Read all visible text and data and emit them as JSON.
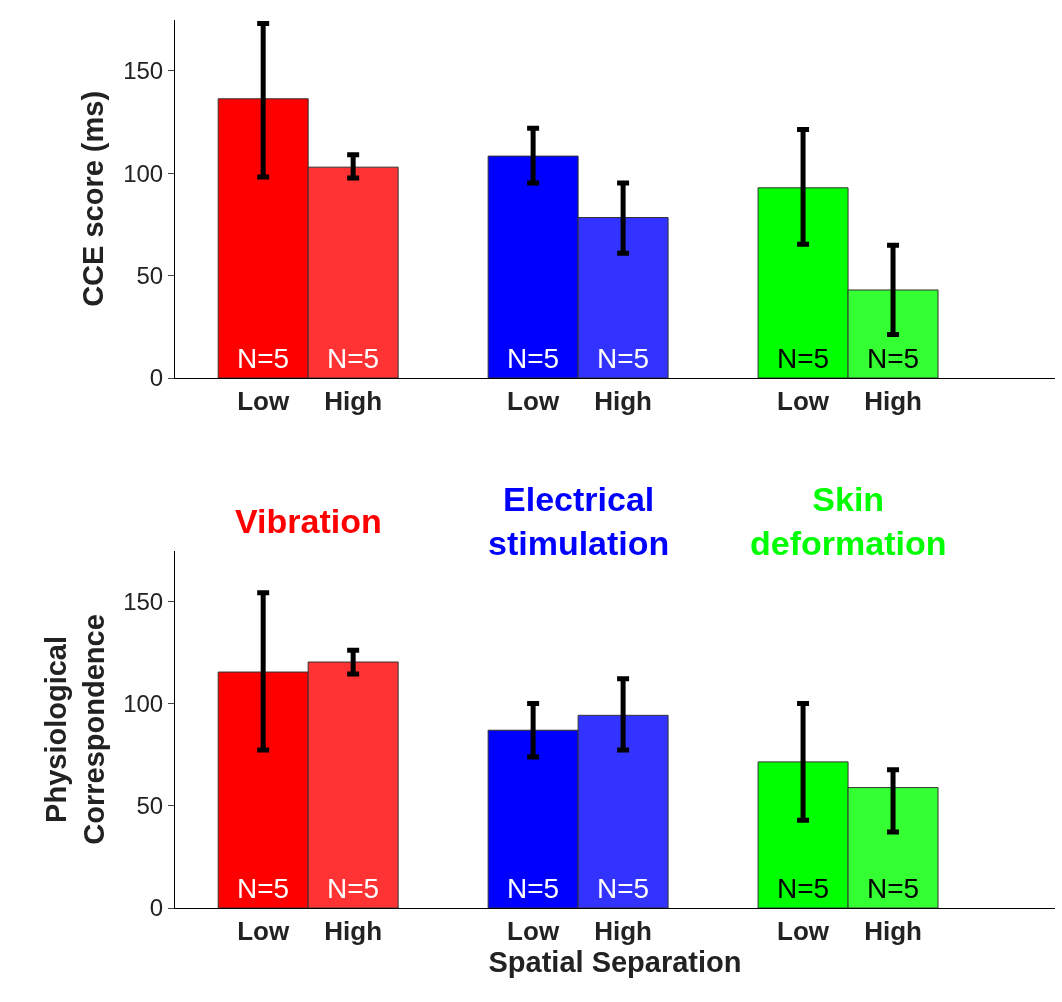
{
  "chart_data": [
    {
      "type": "bar",
      "ylabel": "CCE score (ms)",
      "categories": [
        "Low",
        "High",
        null,
        "Low",
        "High",
        null,
        "Low",
        "High"
      ],
      "ylim": [
        0,
        175
      ],
      "yticks": [
        0,
        50,
        100,
        150
      ],
      "legend": false,
      "annotations": [
        "N=5",
        "N=5",
        "N=5",
        "N=5",
        "N=5",
        "N=5"
      ],
      "series": [
        {
          "colors": [
            "#ff0000",
            "#ff3333",
            null,
            null,
            null,
            null,
            null,
            null
          ],
          "values": [
            136.4,
            103,
            null,
            null,
            null,
            null,
            null,
            null
          ],
          "errors": [
            [
              98.2,
              173.2
            ],
            [
              97.7,
              109
            ],
            null,
            null,
            null,
            null,
            null,
            null
          ]
        },
        {
          "colors": [
            null,
            null,
            null,
            "#0000ff",
            "#3333ff",
            null,
            null,
            null
          ],
          "values": [
            null,
            null,
            null,
            108.4,
            78.4,
            null,
            null,
            null
          ],
          "errors": [
            null,
            null,
            null,
            [
              95.3,
              122
            ],
            [
              61,
              95.3
            ],
            null,
            null,
            null
          ]
        },
        {
          "colors": [
            null,
            null,
            null,
            null,
            null,
            null,
            "#00ff00",
            "#33ff33"
          ],
          "values": [
            null,
            null,
            null,
            null,
            null,
            null,
            92.9,
            43
          ],
          "errors": [
            null,
            null,
            null,
            null,
            null,
            null,
            [
              65.3,
              121.4
            ],
            [
              21.3,
              64.8
            ]
          ]
        }
      ]
    },
    {
      "type": "bar",
      "ylabel": "Physiological\nCorrespondence",
      "xlabel": "Spatial Separation",
      "categories": [
        "Low",
        "High",
        null,
        "Low",
        "High",
        null,
        "Low",
        "High"
      ],
      "ylim": [
        0,
        175
      ],
      "yticks": [
        0,
        50,
        100,
        150
      ],
      "legend": "top",
      "annotations": [
        "N=5",
        "N=5",
        "N=5",
        "N=5",
        "N=5",
        "N=5"
      ],
      "series": [
        {
          "name": "Vibration",
          "color": "#ff0000",
          "colors": [
            "#ff0000",
            "#ff3333",
            null,
            null,
            null,
            null,
            null,
            null
          ],
          "values": [
            115.6,
            120.5,
            null,
            null,
            null,
            null,
            null,
            null
          ],
          "errors": [
            [
              77.4,
              154.4
            ],
            [
              114.7,
              126.3
            ],
            null,
            null,
            null,
            null,
            null,
            null
          ]
        },
        {
          "name": "Electrical\nstimulation",
          "color": "#0000ff",
          "colors": [
            null,
            null,
            null,
            "#0000ff",
            "#3333ff",
            null,
            null,
            null
          ],
          "values": [
            null,
            null,
            null,
            87.1,
            94.4,
            null,
            null,
            null
          ],
          "errors": [
            null,
            null,
            null,
            [
              74,
              100.2
            ],
            [
              77.4,
              112.3
            ],
            null,
            null,
            null
          ]
        },
        {
          "name": "Skin\ndeformation",
          "color": "#00ff00",
          "colors": [
            null,
            null,
            null,
            null,
            null,
            null,
            "#00ff00",
            "#33ff33"
          ],
          "values": [
            null,
            null,
            null,
            null,
            null,
            null,
            71.6,
            59
          ],
          "errors": [
            null,
            null,
            null,
            null,
            null,
            null,
            [
              43,
              100.2
            ],
            [
              37.3,
              67.7
            ]
          ]
        }
      ]
    }
  ]
}
